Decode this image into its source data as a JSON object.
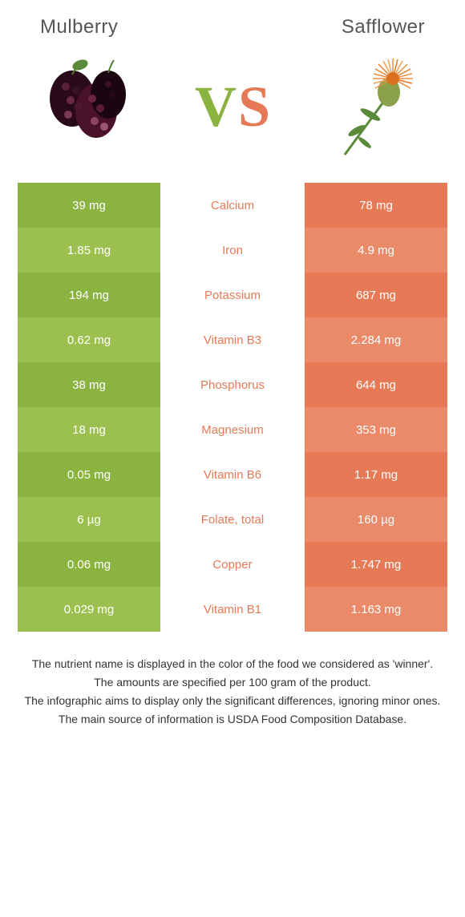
{
  "header": {
    "left_title": "Mulberry",
    "right_title": "Safflower"
  },
  "colors": {
    "left_food": "#8bb33f",
    "right_food": "#e67a56",
    "left_alt": "#9cc050",
    "right_alt": "#ea8a69",
    "bg": "#ffffff"
  },
  "vs": {
    "v": "V",
    "s": "S"
  },
  "rows": [
    {
      "left": "39 mg",
      "label": "Calcium",
      "right": "78 mg",
      "winner": "right"
    },
    {
      "left": "1.85 mg",
      "label": "Iron",
      "right": "4.9 mg",
      "winner": "right"
    },
    {
      "left": "194 mg",
      "label": "Potassium",
      "right": "687 mg",
      "winner": "right"
    },
    {
      "left": "0.62 mg",
      "label": "Vitamin B3",
      "right": "2.284 mg",
      "winner": "right"
    },
    {
      "left": "38 mg",
      "label": "Phosphorus",
      "right": "644 mg",
      "winner": "right"
    },
    {
      "left": "18 mg",
      "label": "Magnesium",
      "right": "353 mg",
      "winner": "right"
    },
    {
      "left": "0.05 mg",
      "label": "Vitamin B6",
      "right": "1.17 mg",
      "winner": "right"
    },
    {
      "left": "6 µg",
      "label": "Folate, total",
      "right": "160 µg",
      "winner": "right"
    },
    {
      "left": "0.06 mg",
      "label": "Copper",
      "right": "1.747 mg",
      "winner": "right"
    },
    {
      "left": "0.029 mg",
      "label": "Vitamin B1",
      "right": "1.163 mg",
      "winner": "right"
    }
  ],
  "footer": {
    "line1": "The nutrient name is displayed in the color of the food we considered as 'winner'.",
    "line2": "The amounts are specified per 100 gram of the product.",
    "line3": "The infographic aims to display only the significant differences, ignoring minor ones.",
    "line4": "The main source of information is USDA Food Composition Database."
  }
}
